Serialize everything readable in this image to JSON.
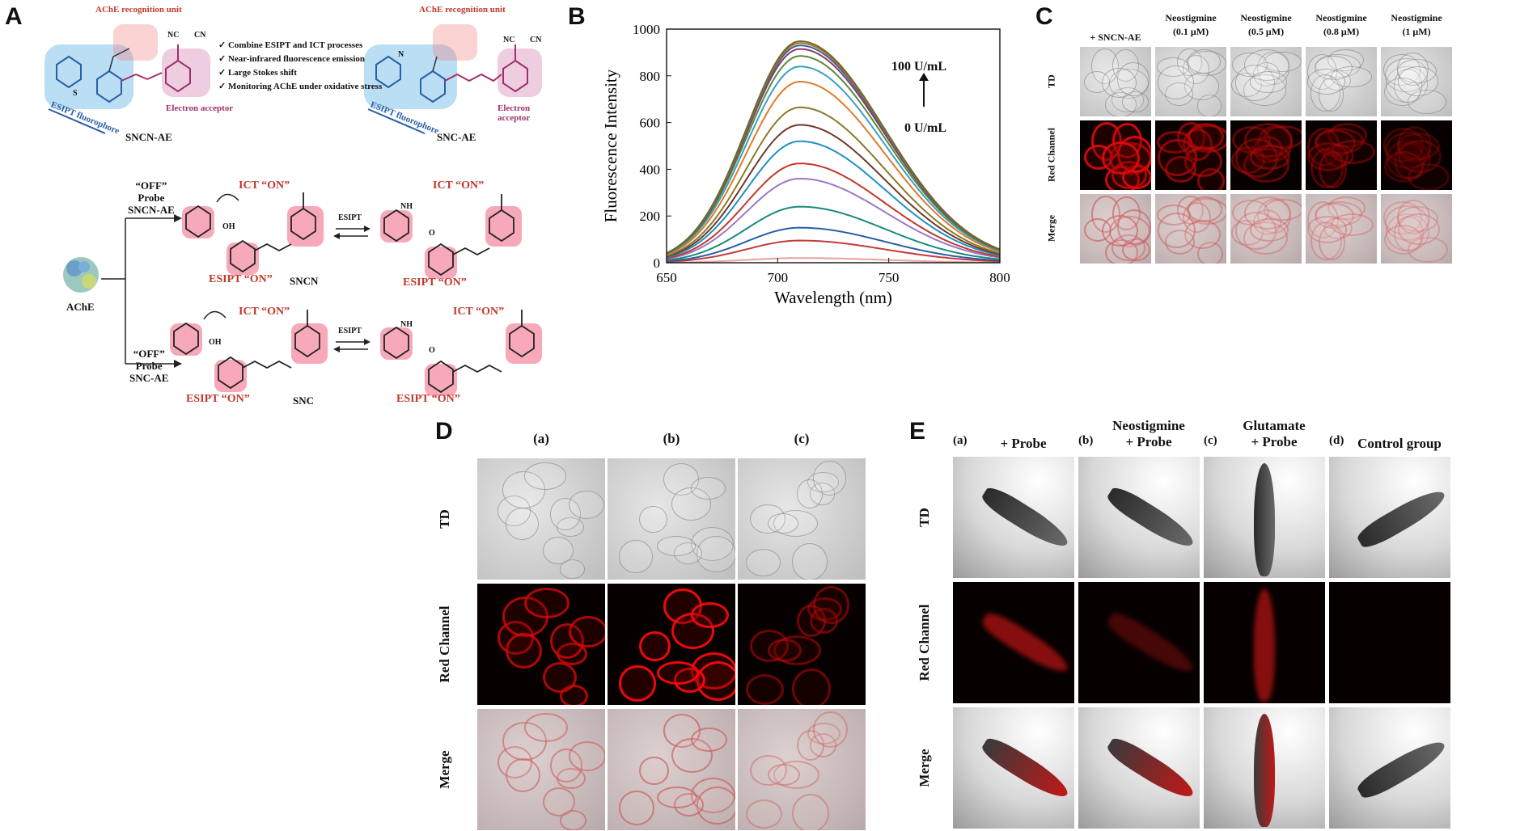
{
  "panels": {
    "A": "A",
    "B": "B",
    "C": "C",
    "D": "D",
    "E": "E"
  },
  "panelA": {
    "recognition_unit_1": "AChE recognition unit",
    "recognition_unit_2": "AChE recognition unit",
    "features": [
      "Combine ESIPT and ICT processes",
      "Near-infrared fluorescence emission",
      "Large Stokes shift",
      "Monitoring AChE under oxidative stress"
    ],
    "esipt_fluorophore_1": "ESIPT fluorophore",
    "esipt_fluorophore_2": "ESIPT fluorophore",
    "electron_acceptor_1": "Electron acceptor",
    "electron_acceptor_2": "Electron acceptor",
    "probe_name_1": "SNCN-AE",
    "probe_name_2": "SNC-AE",
    "ache": "AChE",
    "off_probe_1": [
      "“OFF”",
      "Probe",
      "SNCN-AE"
    ],
    "off_probe_2": [
      "“OFF”",
      "Probe",
      "SNC-AE"
    ],
    "ict_on": "ICT “ON”",
    "esipt_on": "ESIPT “ON”",
    "esipt": "ESIPT",
    "sncn": "SNCN",
    "snc": "SNC",
    "nc": "NC",
    "cn": "CN",
    "oh": "OH",
    "nh": "NH",
    "o": "O",
    "s": "S",
    "n": "N"
  },
  "chart_data": {
    "type": "line",
    "xlabel": "Wavelength (nm)",
    "ylabel": "Fluorescence Intensity",
    "xlim": [
      650,
      800
    ],
    "ylim": [
      0,
      1000
    ],
    "xticks": [
      650,
      700,
      750,
      800
    ],
    "yticks": [
      0,
      200,
      400,
      600,
      800,
      1000
    ],
    "peak_x": 710,
    "annotation_top": "100 U/mL",
    "annotation_bottom": "0 U/mL",
    "series": [
      {
        "color": "#e7a0a0",
        "peak": 20
      },
      {
        "color": "#c43b3b",
        "peak": 95
      },
      {
        "color": "#2a5ea8",
        "peak": 150
      },
      {
        "color": "#1a8a7a",
        "peak": 240
      },
      {
        "color": "#9a79c4",
        "peak": 360
      },
      {
        "color": "#c0392b",
        "peak": 425
      },
      {
        "color": "#1f8fc6",
        "peak": 520
      },
      {
        "color": "#6d3a2a",
        "peak": 590
      },
      {
        "color": "#8a7a2a",
        "peak": 665
      },
      {
        "color": "#e07a2a",
        "peak": 775
      },
      {
        "color": "#3ca0c0",
        "peak": 840
      },
      {
        "color": "#5a8a3a",
        "peak": 885
      },
      {
        "color": "#8a3a6a",
        "peak": 915
      },
      {
        "color": "#2a6a9a",
        "peak": 930
      },
      {
        "color": "#c06a2a",
        "peak": 940
      },
      {
        "color": "#6a6a2a",
        "peak": 948
      }
    ]
  },
  "panelC": {
    "columns": [
      "+ SNCN-AE",
      "Neostigmine\n(0.1 μM)",
      "Neostigmine\n(0.5 μM)",
      "Neostigmine\n(0.8 μM)",
      "Neostigmine\n(1 μM)"
    ],
    "rows": [
      "TD",
      "Red Channel",
      "Merge"
    ],
    "red_intensity": [
      0.85,
      0.6,
      0.45,
      0.4,
      0.3
    ]
  },
  "panelD": {
    "columns": [
      "(a)",
      "(b)",
      "(c)"
    ],
    "rows": [
      "TD",
      "Red Channel",
      "Merge"
    ],
    "red_intensity": [
      0.75,
      0.95,
      0.5
    ]
  },
  "panelE": {
    "columns": [
      {
        "tag": "(a)",
        "label": "+ Probe"
      },
      {
        "tag": "(b)",
        "label": "Neostigmine\n+ Probe"
      },
      {
        "tag": "(c)",
        "label": "Glutamate\n+ Probe"
      },
      {
        "tag": "(d)",
        "label": "Control group"
      }
    ],
    "rows": [
      "TD",
      "Red Channel",
      "Merge"
    ]
  }
}
